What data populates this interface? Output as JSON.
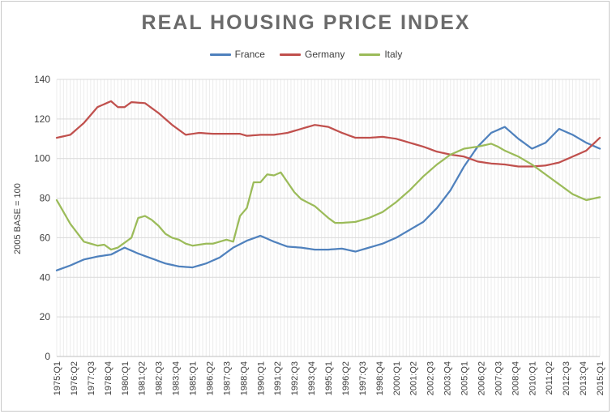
{
  "chart_data": {
    "type": "line",
    "title": "REAL HOUSING PRICE INDEX",
    "xlabel": "",
    "ylabel": "2005 BASE = 100",
    "ylim": [
      0,
      140
    ],
    "yticks": [
      0,
      20,
      40,
      60,
      80,
      100,
      120,
      140
    ],
    "grid": true,
    "legend_position": "top",
    "x_start_year": 1975,
    "x_start_quarter": 1,
    "x_end_year": 2015,
    "x_end_quarter": 1,
    "tick_labels": [
      "1975:Q1",
      "1976:Q2",
      "1977:Q3",
      "1978:Q4",
      "1980:Q1",
      "1981:Q2",
      "1982:Q3",
      "1983:Q4",
      "1985:Q1",
      "1986:Q2",
      "1987:Q3",
      "1988:Q4",
      "1990:Q1",
      "1991:Q2",
      "1992:Q3",
      "1993:Q4",
      "1995:Q1",
      "1996:Q2",
      "1997:Q3",
      "1998:Q4",
      "2000:Q1",
      "2001:Q2",
      "2002:Q3",
      "2003:Q4",
      "2005:Q1",
      "2006:Q2",
      "2007:Q3",
      "2008:Q4",
      "2010:Q1",
      "2011:Q2",
      "2012:Q3",
      "2013:Q4",
      "2015:Q1"
    ],
    "series": [
      {
        "name": "France",
        "color": "#4f81bd",
        "key_points": [
          [
            0,
            43.5
          ],
          [
            4,
            46
          ],
          [
            8,
            49
          ],
          [
            12,
            50.5
          ],
          [
            16,
            51.5
          ],
          [
            20,
            55
          ],
          [
            24,
            52
          ],
          [
            28,
            49.5
          ],
          [
            32,
            47
          ],
          [
            36,
            45.5
          ],
          [
            40,
            45
          ],
          [
            44,
            47
          ],
          [
            48,
            50
          ],
          [
            52,
            55
          ],
          [
            56,
            58.5
          ],
          [
            60,
            61
          ],
          [
            64,
            58
          ],
          [
            68,
            55.5
          ],
          [
            72,
            55
          ],
          [
            76,
            54
          ],
          [
            80,
            54
          ],
          [
            84,
            54.5
          ],
          [
            88,
            53
          ],
          [
            92,
            55
          ],
          [
            96,
            57
          ],
          [
            100,
            60
          ],
          [
            104,
            64
          ],
          [
            108,
            68
          ],
          [
            112,
            75
          ],
          [
            116,
            84
          ],
          [
            120,
            96
          ],
          [
            124,
            106
          ],
          [
            128,
            113
          ],
          [
            132,
            116
          ],
          [
            136,
            110
          ],
          [
            140,
            105
          ],
          [
            144,
            108
          ],
          [
            148,
            115
          ],
          [
            152,
            112
          ],
          [
            156,
            108
          ],
          [
            160,
            105
          ]
        ]
      },
      {
        "name": "Germany",
        "color": "#c0504d",
        "key_points": [
          [
            0,
            110.5
          ],
          [
            4,
            112
          ],
          [
            8,
            118
          ],
          [
            12,
            126
          ],
          [
            16,
            129
          ],
          [
            18,
            126
          ],
          [
            20,
            126
          ],
          [
            22,
            128.5
          ],
          [
            26,
            128
          ],
          [
            30,
            123
          ],
          [
            34,
            117
          ],
          [
            38,
            112
          ],
          [
            42,
            113
          ],
          [
            46,
            112.5
          ],
          [
            50,
            112.5
          ],
          [
            54,
            112.5
          ],
          [
            56,
            111.5
          ],
          [
            60,
            112
          ],
          [
            64,
            112
          ],
          [
            68,
            113
          ],
          [
            72,
            115
          ],
          [
            76,
            117
          ],
          [
            80,
            116
          ],
          [
            84,
            113
          ],
          [
            88,
            110.5
          ],
          [
            92,
            110.5
          ],
          [
            96,
            111
          ],
          [
            100,
            110
          ],
          [
            104,
            108
          ],
          [
            108,
            106
          ],
          [
            112,
            103.5
          ],
          [
            116,
            102
          ],
          [
            120,
            101
          ],
          [
            124,
            98.5
          ],
          [
            128,
            97.5
          ],
          [
            132,
            97
          ],
          [
            136,
            96
          ],
          [
            140,
            96
          ],
          [
            144,
            96.5
          ],
          [
            148,
            98
          ],
          [
            152,
            101
          ],
          [
            156,
            104
          ],
          [
            160,
            110.5
          ]
        ]
      },
      {
        "name": "Italy",
        "color": "#9bbb59",
        "key_points": [
          [
            0,
            79
          ],
          [
            4,
            67
          ],
          [
            8,
            58
          ],
          [
            12,
            56
          ],
          [
            14,
            56.5
          ],
          [
            16,
            54
          ],
          [
            18,
            55
          ],
          [
            20,
            57.5
          ],
          [
            22,
            60
          ],
          [
            24,
            70
          ],
          [
            26,
            71
          ],
          [
            28,
            69
          ],
          [
            30,
            66
          ],
          [
            32,
            62
          ],
          [
            34,
            60
          ],
          [
            36,
            59
          ],
          [
            38,
            57
          ],
          [
            40,
            56
          ],
          [
            44,
            57
          ],
          [
            46,
            57
          ],
          [
            50,
            59
          ],
          [
            52,
            58
          ],
          [
            54,
            71
          ],
          [
            56,
            75
          ],
          [
            58,
            88
          ],
          [
            60,
            88
          ],
          [
            62,
            92
          ],
          [
            64,
            91.5
          ],
          [
            66,
            93
          ],
          [
            68,
            88
          ],
          [
            70,
            83
          ],
          [
            72,
            79.5
          ],
          [
            76,
            76
          ],
          [
            80,
            70
          ],
          [
            82,
            67.5
          ],
          [
            84,
            67.5
          ],
          [
            88,
            68
          ],
          [
            92,
            70
          ],
          [
            96,
            73
          ],
          [
            100,
            78
          ],
          [
            104,
            84
          ],
          [
            108,
            91
          ],
          [
            112,
            97
          ],
          [
            116,
            102
          ],
          [
            120,
            105
          ],
          [
            124,
            106
          ],
          [
            128,
            107.5
          ],
          [
            130,
            106
          ],
          [
            132,
            104
          ],
          [
            136,
            101
          ],
          [
            140,
            97
          ],
          [
            144,
            92
          ],
          [
            148,
            87
          ],
          [
            152,
            82
          ],
          [
            156,
            79
          ],
          [
            160,
            80.5
          ]
        ]
      }
    ]
  }
}
